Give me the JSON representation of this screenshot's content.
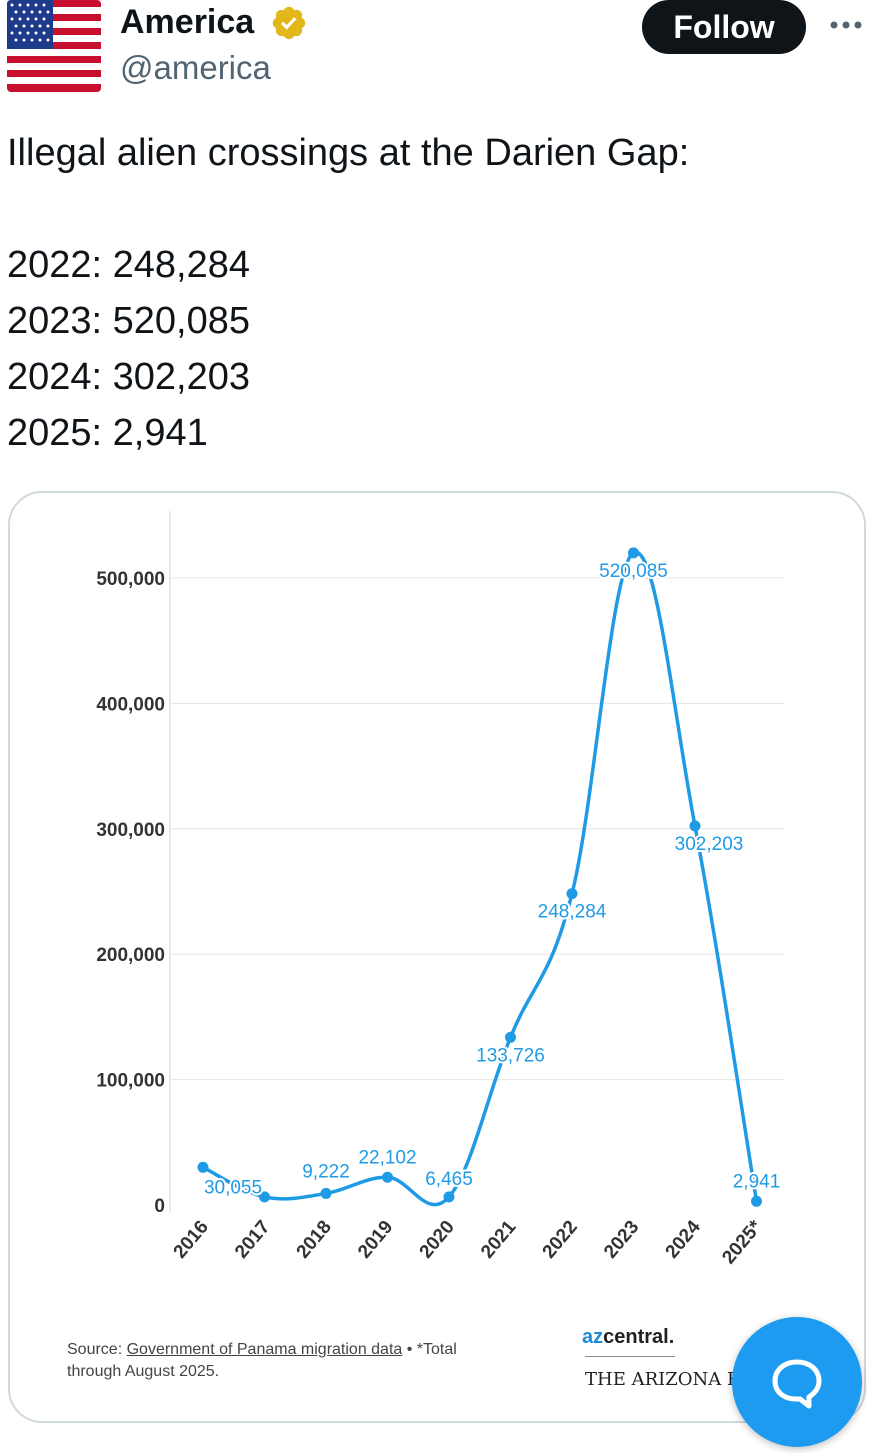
{
  "post": {
    "display_name": "America",
    "handle": "@america",
    "follow_label": "Follow",
    "text_lines": [
      "Illegal alien crossings at the Darien Gap:",
      "2022: 248,284",
      "2023: 520,085",
      "2024: 302,203",
      "2025: 2,941"
    ]
  },
  "icons": {
    "avatar": "us-flag-icon",
    "verified": "verified-badge-icon",
    "more": "more-options-icon",
    "fab": "chat-bubble-icon"
  },
  "colors": {
    "accent": "#1d9bf0",
    "verified_gold": "#e2b719",
    "chart_line": "#1f9be6"
  },
  "chart_data": {
    "type": "line",
    "x": [
      "2016",
      "2017",
      "2018",
      "2019",
      "2020",
      "2021",
      "2022",
      "2023",
      "2024",
      "2025*"
    ],
    "values": [
      30055,
      6465,
      9222,
      22102,
      6465,
      133726,
      248284,
      520085,
      302203,
      2941
    ],
    "point_labels": [
      "30,055",
      "",
      "9,222",
      "22,102",
      "6,465",
      "133,726",
      "248,284",
      "520,085",
      "302,203",
      "2,941"
    ],
    "y_ticks": [
      0,
      100000,
      200000,
      300000,
      400000,
      500000
    ],
    "y_tick_labels": [
      "0",
      "100,000",
      "200,000",
      "300,000",
      "400,000",
      "500,000"
    ],
    "ylim": [
      0,
      500000
    ],
    "grid": true,
    "source_prefix": "Source: ",
    "source_link": "Government of Panama migration data",
    "source_suffix": " • *Total",
    "source_line2": "through August 2025.",
    "logo_primary_a": "az",
    "logo_primary_b": "central.",
    "logo_secondary": "THE ARIZONA REPUBLIC"
  }
}
